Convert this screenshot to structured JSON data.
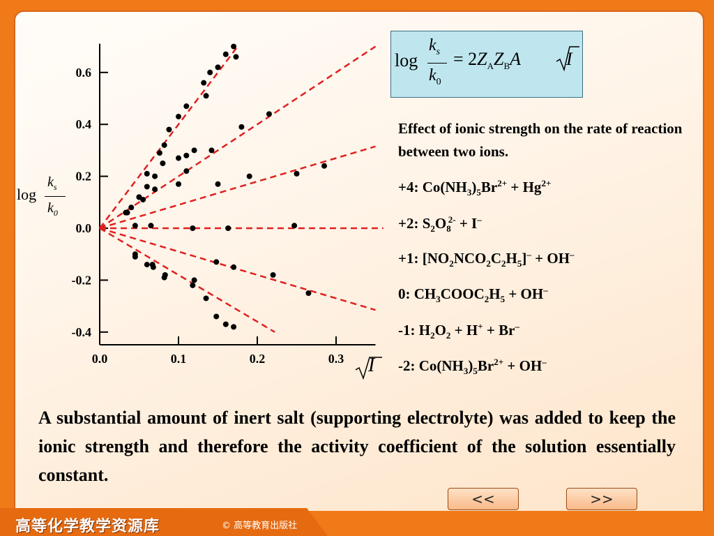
{
  "formula": {
    "log": "log",
    "num": "k",
    "num_sub": "s",
    "den": "k",
    "den_sub": "0",
    "rhs_pre": "= 2",
    "za": "Z",
    "za_sub": "A",
    "zb": "Z",
    "zb_sub": "B",
    "a": "A",
    "i": "I"
  },
  "caption": "Effect of ionic strength on the rate of reaction between two ions.",
  "reactions": [
    {
      "label": "+4: Co(NH",
      "s1": "3",
      "m1": ")",
      "s2": "5",
      "m2": "Br",
      "p1": "2+",
      "m3": " + Hg",
      "p2": "2+",
      "m4": ""
    },
    {
      "label": "+2: S",
      "s1": "2",
      "m1": "O",
      "s2": "8",
      "m2": "",
      "p1": "2-",
      "m3": " + I",
      "p2": "–",
      "m4": ""
    },
    {
      "label": "+1: [NO",
      "s1": "2",
      "m1": "NCO",
      "s2": "2",
      "m2": "C",
      "s3": "2",
      "m3a": "H",
      "s4": "5",
      "m4a": "]",
      "p1": "–",
      "m3": " + OH",
      "p2": "–",
      "m4": ""
    },
    {
      "label": "0: CH",
      "s1": "3",
      "m1": "COOC",
      "s2": "2",
      "m2": "H",
      "s3": "5",
      "m3": " + OH",
      "p2": "–",
      "m4": ""
    },
    {
      "label": "-1: H",
      "s1": "2",
      "m1": "O",
      "s2": "2",
      "m2": " + H",
      "p1": "+",
      "m3": " + Br",
      "p2": "–",
      "m4": ""
    },
    {
      "label": "-2:  Co(NH",
      "s1": "3",
      "m1": ")",
      "s2": "5",
      "m2": "Br",
      "p1": "2+",
      "m3": " + OH",
      "p2": "–",
      "m4": ""
    }
  ],
  "bottom_text": "A substantial amount of inert salt (supporting electrolyte) was added to keep the ionic strength and therefore the activity coefficient of the solution essentially constant.",
  "nav": {
    "prev": "<<",
    "next": ">>"
  },
  "footer": {
    "title": "高等化学教学资源库",
    "copyright": "© 高等教育出版社"
  },
  "colors": {
    "frame": "#f07a18",
    "fit_line": "#e02020",
    "formula_box": "#bfe6ee"
  },
  "chart_data": {
    "type": "scatter",
    "xlabel": "√I",
    "ylabel": "log ks/k0",
    "x_ticks": [
      "0.0",
      "0.1",
      "0.2",
      "0.3"
    ],
    "y_ticks": [
      "0.6",
      "0.4",
      "0.2",
      "0.0",
      "-0.2",
      "-0.4"
    ],
    "xlim": [
      0,
      0.35
    ],
    "ylim": [
      -0.45,
      0.7
    ],
    "series": [
      {
        "name": "+4",
        "slope": 4.0,
        "points": [
          [
            0.035,
            0.06
          ],
          [
            0.05,
            0.12
          ],
          [
            0.06,
            0.21
          ],
          [
            0.076,
            0.29
          ],
          [
            0.082,
            0.32
          ],
          [
            0.088,
            0.38
          ],
          [
            0.1,
            0.43
          ],
          [
            0.11,
            0.47
          ],
          [
            0.132,
            0.56
          ],
          [
            0.135,
            0.51
          ],
          [
            0.14,
            0.6
          ],
          [
            0.15,
            0.62
          ],
          [
            0.16,
            0.67
          ],
          [
            0.17,
            0.7
          ],
          [
            0.173,
            0.66
          ]
        ]
      },
      {
        "name": "+2",
        "slope": 2.0,
        "points": [
          [
            0.04,
            0.08
          ],
          [
            0.05,
            0.12
          ],
          [
            0.06,
            0.16
          ],
          [
            0.07,
            0.2
          ],
          [
            0.08,
            0.25
          ],
          [
            0.1,
            0.27
          ],
          [
            0.11,
            0.28
          ],
          [
            0.12,
            0.3
          ],
          [
            0.142,
            0.3
          ],
          [
            0.18,
            0.39
          ],
          [
            0.215,
            0.44
          ]
        ]
      },
      {
        "name": "+1",
        "slope": 0.9,
        "points": [
          [
            0.033,
            0.06
          ],
          [
            0.055,
            0.11
          ],
          [
            0.07,
            0.15
          ],
          [
            0.1,
            0.17
          ],
          [
            0.11,
            0.22
          ],
          [
            0.15,
            0.17
          ],
          [
            0.19,
            0.2
          ],
          [
            0.25,
            0.21
          ],
          [
            0.285,
            0.24
          ]
        ]
      },
      {
        "name": "0",
        "slope": 0.0,
        "points": [
          [
            0.045,
            0.01
          ],
          [
            0.065,
            0.01
          ],
          [
            0.118,
            0.0
          ],
          [
            0.163,
            0.0
          ],
          [
            0.247,
            0.01
          ]
        ]
      },
      {
        "name": "-1",
        "slope": -0.9,
        "points": [
          [
            0.045,
            -0.11
          ],
          [
            0.06,
            -0.14
          ],
          [
            0.067,
            -0.14
          ],
          [
            0.082,
            -0.19
          ],
          [
            0.12,
            -0.2
          ],
          [
            0.148,
            -0.13
          ],
          [
            0.17,
            -0.15
          ],
          [
            0.22,
            -0.18
          ],
          [
            0.265,
            -0.25
          ]
        ]
      },
      {
        "name": "-2",
        "slope": -1.8,
        "points": [
          [
            0.045,
            -0.1
          ],
          [
            0.068,
            -0.15
          ],
          [
            0.083,
            -0.18
          ],
          [
            0.118,
            -0.22
          ],
          [
            0.135,
            -0.27
          ],
          [
            0.148,
            -0.34
          ],
          [
            0.16,
            -0.37
          ],
          [
            0.17,
            -0.38
          ]
        ]
      }
    ]
  }
}
